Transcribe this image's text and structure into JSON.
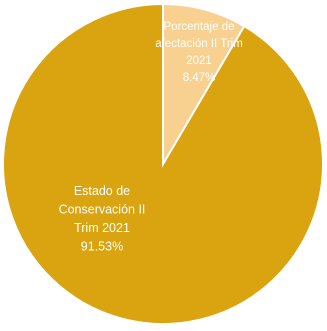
{
  "chart_data": {
    "type": "pie",
    "slices": [
      {
        "label": "Estado de Conservación II Trim 2021",
        "label_lines": [
          "Estado de",
          "Conservación II",
          "Trim 2021"
        ],
        "value": 91.53,
        "value_label": "91.53%",
        "color": "#d9a40f"
      },
      {
        "label": "Porcentaje de afectación II Trim 2021",
        "label_lines": [
          "Porcentaje de",
          "afectación II Trim",
          "2021"
        ],
        "value": 8.47,
        "value_label": "8.47%",
        "color": "#f8d090"
      }
    ],
    "start_angle": "12 o'clock",
    "direction": "counter-clockwise for the large slice, small slice clockwise from top",
    "legend": "none",
    "data_labels": "inside slices"
  }
}
